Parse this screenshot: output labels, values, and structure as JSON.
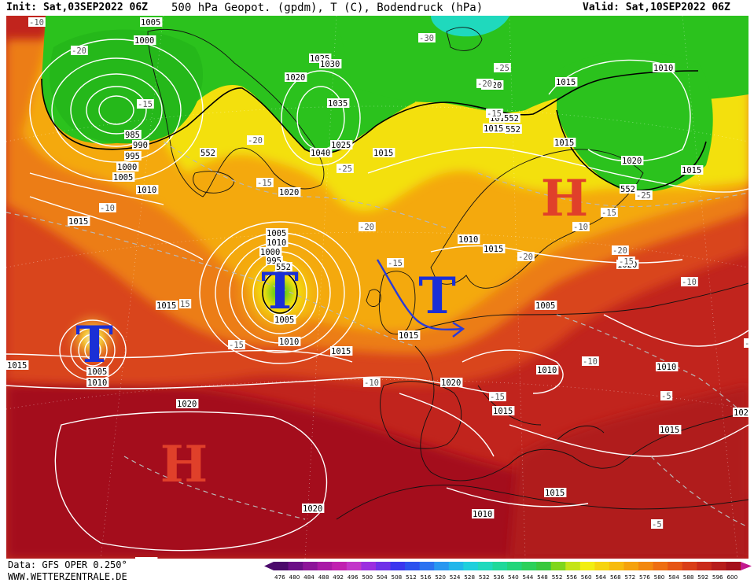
{
  "header": {
    "init": "Init: Sat,03SEP2022 06Z",
    "title": "500 hPa Geopot. (gpdm), T (C), Bodendruck (hPa)",
    "valid": "Valid: Sat,10SEP2022 06Z"
  },
  "footer": {
    "data_source": "Data: GFS OPER 0.250°",
    "website": "WWW.WETTERZENTRALE.DE"
  },
  "map": {
    "pressure_systems": [
      {
        "symbol": "T",
        "type": "low",
        "color": "#1a2fd6"
      },
      {
        "symbol": "T",
        "type": "low",
        "color": "#1a2fd6"
      },
      {
        "symbol": "T",
        "type": "low",
        "color": "#1a2fd6"
      },
      {
        "symbol": "H",
        "type": "high",
        "color": "#e0402a"
      },
      {
        "symbol": "H",
        "type": "high",
        "color": "#e0402a"
      }
    ],
    "pressure_labels": [
      "1005",
      "1000",
      "985",
      "990",
      "995",
      "1000",
      "1005",
      "1010",
      "1015",
      "1025",
      "1030",
      "1020",
      "1035",
      "1040",
      "1025",
      "1015",
      "1020",
      "1005",
      "1010",
      "1000",
      "995",
      "1015",
      "1005",
      "1010",
      "1005",
      "1010",
      "1015",
      "1015",
      "1020",
      "1010",
      "1015",
      "1005",
      "1010",
      "1015",
      "1020",
      "1015",
      "1020",
      "1010",
      "1015",
      "1020",
      "1010",
      "1015",
      "1015",
      "1015",
      "1010",
      "1020",
      "1020",
      "1020",
      "1015",
      "1015",
      "1010",
      "1005",
      "1020"
    ],
    "temperature_labels": [
      "-10",
      "-20",
      "-30",
      "-25",
      "-20",
      "-15",
      "-20",
      "-25",
      "-15",
      "-10",
      "-20",
      "-15",
      "-20",
      "-25",
      "-15",
      "-20",
      "-15",
      "-10",
      "-15",
      "-10",
      "-10",
      "-15",
      "-10",
      "-5",
      "-5",
      "-10",
      "-15",
      "15"
    ],
    "geopotential_labels": [
      "552",
      "552",
      "552",
      "552",
      "552"
    ],
    "colors": {
      "ocean_deep_red": "#a4101c",
      "red": "#c1241d",
      "orange_red": "#d9451a",
      "orange": "#ec7d12",
      "yellow_orange": "#f4a90e",
      "yellow": "#f3e00e",
      "green": "#2bc21d",
      "front_arrow": "#2a3bd8",
      "contours": "#ffffff"
    }
  },
  "legend": {
    "values": [
      "476",
      "480",
      "484",
      "488",
      "492",
      "496",
      "500",
      "504",
      "508",
      "512",
      "516",
      "520",
      "524",
      "528",
      "532",
      "536",
      "540",
      "544",
      "548",
      "552",
      "556",
      "560",
      "564",
      "568",
      "572",
      "576",
      "580",
      "584",
      "588",
      "592",
      "596",
      "600"
    ],
    "colors": [
      "#4a0a6b",
      "#6a0f87",
      "#8c1499",
      "#a81aa6",
      "#c020b0",
      "#c236c9",
      "#9b2ee0",
      "#6f31e8",
      "#3a36ee",
      "#2b52ee",
      "#2b72f0",
      "#2897f0",
      "#21b6ea",
      "#1ecfdc",
      "#1fd9bd",
      "#1fd89a",
      "#22d57a",
      "#2bd05a",
      "#38c83e",
      "#7fd61c",
      "#c4e418",
      "#f2ee12",
      "#f6d40f",
      "#f7bb0e",
      "#f5a20d",
      "#f2880f",
      "#ee6e12",
      "#e65515",
      "#d93e18",
      "#c92b1b",
      "#b61d1c",
      "#a4111c"
    ]
  }
}
